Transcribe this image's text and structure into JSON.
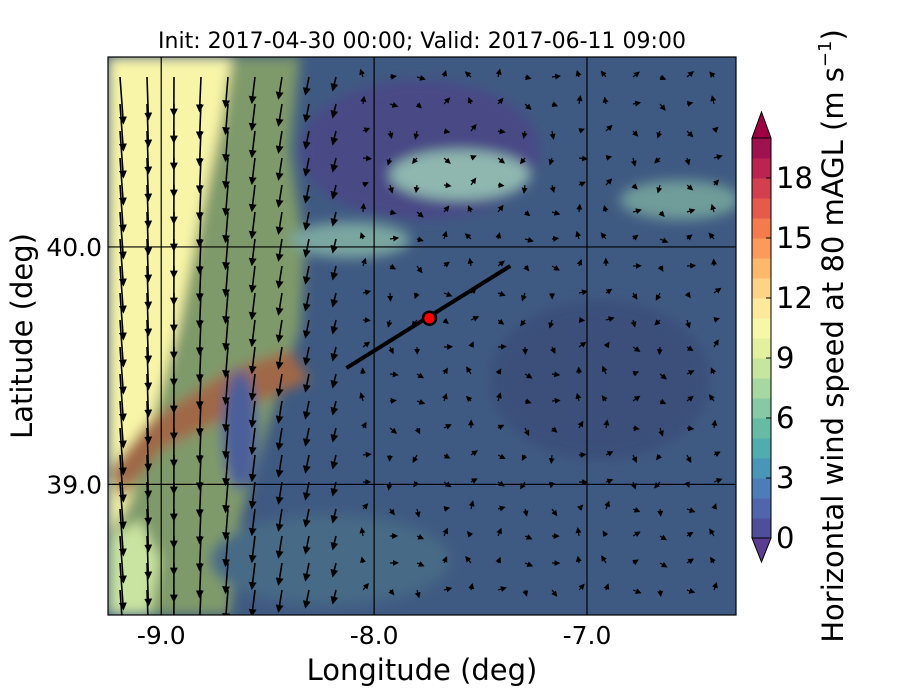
{
  "chart_data": {
    "type": "heatmap",
    "title": "Init: 2017-04-30 00:00; Valid: 2017-06-11 09:00",
    "xlabel": "Longitude (deg)",
    "ylabel": "Latitude (deg)",
    "xlim": [
      -9.25,
      -6.3
    ],
    "ylim": [
      38.45,
      40.8
    ],
    "x_ticks": [
      {
        "value": -9.0,
        "label": "-9.0"
      },
      {
        "value": -8.0,
        "label": "-8.0"
      },
      {
        "value": -7.0,
        "label": "-7.0"
      }
    ],
    "y_ticks": [
      {
        "value": 40.0,
        "label": "40.0"
      },
      {
        "value": 39.0,
        "label": "39.0"
      }
    ],
    "grid": true,
    "colorbar": {
      "label": "Horizontal wind speed at 80 mAGL (m s",
      "label_exponent": "−1",
      "label_close": ")",
      "min": 0,
      "max": 20,
      "step": 1,
      "extend": "both",
      "ticks": [
        {
          "value": 0,
          "label": "0"
        },
        {
          "value": 3,
          "label": "3"
        },
        {
          "value": 6,
          "label": "6"
        },
        {
          "value": 9,
          "label": "9"
        },
        {
          "value": 12,
          "label": "12"
        },
        {
          "value": 15,
          "label": "15"
        },
        {
          "value": 18,
          "label": "18"
        }
      ],
      "colors": [
        "#4e4e9a",
        "#4f66ad",
        "#4d7db8",
        "#4a96b8",
        "#51acb0",
        "#67bba5",
        "#86c9a4",
        "#a6d9a1",
        "#c6e6a0",
        "#e2f09f",
        "#f6f7a9",
        "#fde99b",
        "#fed387",
        "#fdb86c",
        "#fb9a5a",
        "#f47b4e",
        "#e55b4b",
        "#d23f4e",
        "#bb2450",
        "#a0124f"
      ],
      "under_color": "#5a3d91",
      "over_color": "#9e0142"
    },
    "cross_section_line": {
      "start": [
        -8.13,
        39.49
      ],
      "end": [
        -7.36,
        39.92
      ]
    },
    "marker": {
      "lon": -7.74,
      "lat": 39.7,
      "color": "#ff0000"
    }
  }
}
